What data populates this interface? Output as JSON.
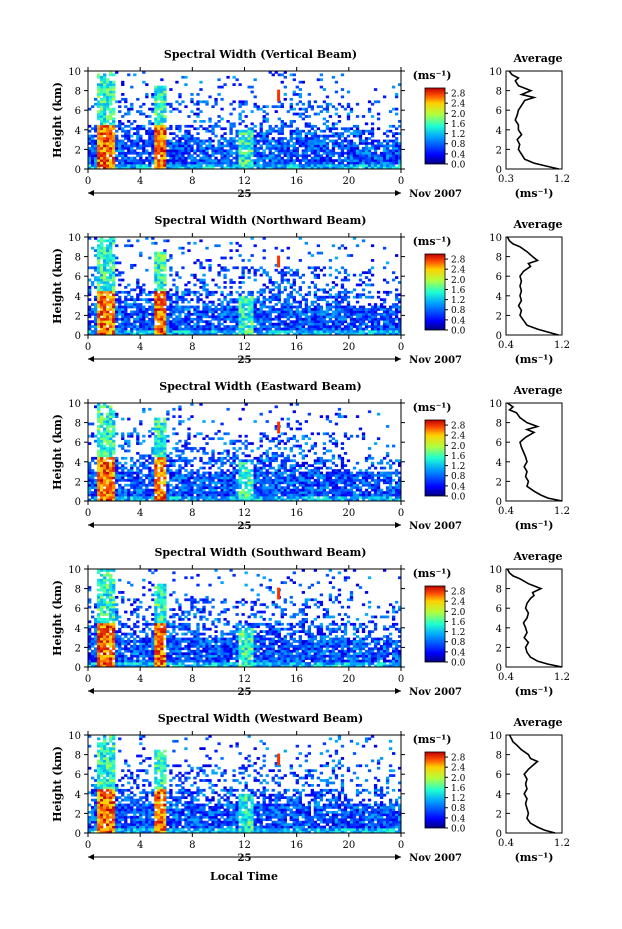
{
  "figure": {
    "date_label": "Nov 2007",
    "day_label": "25",
    "xlabel": "Local Time",
    "ylabel": "Height (km)",
    "unit_label": "(ms⁻¹)",
    "profile_title": "Average",
    "profile_xlabel": "(ms⁻¹)"
  },
  "chart_data": [
    {
      "type": "heatmap",
      "title": "Spectral Width (Vertical Beam)",
      "x_ticks": [
        "0",
        "4",
        "8",
        "12",
        "16",
        "20",
        "0"
      ],
      "y_ticks": [
        "0",
        "2",
        "4",
        "6",
        "8",
        "10"
      ],
      "xlim": [
        0,
        24
      ],
      "ylim": [
        0,
        10
      ],
      "colorbar_ticks": [
        "0.0",
        "0.4",
        "0.8",
        "1.2",
        "1.6",
        "2.0",
        "2.4",
        "2.8"
      ],
      "colorbar_range": [
        0,
        3.0
      ],
      "profile": {
        "x_ticks": [
          "0.3",
          "1.2"
        ],
        "xlim": [
          0.3,
          1.2
        ],
        "y_ticks": [
          "0",
          "2",
          "4",
          "6",
          "8",
          "10"
        ],
        "heights": [
          0,
          0.3,
          0.6,
          1,
          1.5,
          2,
          2.5,
          3,
          3.5,
          4,
          4.5,
          5,
          5.5,
          6,
          6.5,
          7,
          7.3,
          7.6,
          8,
          8.5,
          9,
          9.3,
          9.6,
          10
        ],
        "values": [
          1.15,
          0.95,
          0.75,
          0.6,
          0.55,
          0.5,
          0.52,
          0.48,
          0.55,
          0.5,
          0.5,
          0.45,
          0.48,
          0.5,
          0.55,
          0.6,
          0.75,
          0.55,
          0.7,
          0.5,
          0.45,
          0.5,
          0.4,
          0.35
        ]
      }
    },
    {
      "type": "heatmap",
      "title": "Spectral Width (Northward Beam)",
      "x_ticks": [
        "0",
        "4",
        "8",
        "12",
        "16",
        "20",
        "0"
      ],
      "y_ticks": [
        "0",
        "2",
        "4",
        "6",
        "8",
        "10"
      ],
      "xlim": [
        0,
        24
      ],
      "ylim": [
        0,
        10
      ],
      "colorbar_ticks": [
        "0.0",
        "0.4",
        "0.8",
        "1.2",
        "1.6",
        "2.0",
        "2.4",
        "2.8"
      ],
      "colorbar_range": [
        0,
        3.0
      ],
      "profile": {
        "x_ticks": [
          "0.4",
          "1.2"
        ],
        "xlim": [
          0.4,
          1.2
        ],
        "y_ticks": [
          "0",
          "2",
          "4",
          "6",
          "8",
          "10"
        ],
        "heights": [
          0,
          0.3,
          0.6,
          1,
          1.5,
          2,
          2.5,
          3,
          3.5,
          4,
          4.5,
          5,
          5.5,
          6,
          6.5,
          7,
          7.3,
          7.6,
          8,
          8.5,
          9,
          9.3,
          9.6,
          10
        ],
        "values": [
          1.15,
          1.0,
          0.85,
          0.7,
          0.65,
          0.6,
          0.62,
          0.58,
          0.62,
          0.6,
          0.62,
          0.6,
          0.62,
          0.6,
          0.65,
          0.75,
          0.72,
          0.85,
          0.78,
          0.7,
          0.6,
          0.5,
          0.45,
          0.42
        ]
      }
    },
    {
      "type": "heatmap",
      "title": "Spectral Width (Eastward Beam)",
      "x_ticks": [
        "0",
        "4",
        "8",
        "12",
        "16",
        "20",
        "0"
      ],
      "y_ticks": [
        "0",
        "2",
        "4",
        "6",
        "8",
        "10"
      ],
      "xlim": [
        0,
        24
      ],
      "ylim": [
        0,
        10
      ],
      "colorbar_ticks": [
        "0.0",
        "0.4",
        "0.8",
        "1.2",
        "1.6",
        "2.0",
        "2.4",
        "2.8"
      ],
      "colorbar_range": [
        0,
        3.0
      ],
      "profile": {
        "x_ticks": [
          "0.4",
          "1.2"
        ],
        "xlim": [
          0.4,
          1.2
        ],
        "y_ticks": [
          "0",
          "2",
          "4",
          "6",
          "8",
          "10"
        ],
        "heights": [
          0,
          0.3,
          0.6,
          1,
          1.5,
          2,
          2.5,
          3,
          3.5,
          4,
          4.5,
          5,
          5.5,
          6,
          6.5,
          7,
          7.3,
          7.6,
          8,
          8.5,
          9,
          9.3,
          9.6,
          10
        ],
        "values": [
          1.2,
          1.0,
          0.9,
          0.8,
          0.7,
          0.72,
          0.68,
          0.7,
          0.66,
          0.7,
          0.68,
          0.65,
          0.62,
          0.6,
          0.68,
          0.8,
          0.7,
          0.85,
          0.7,
          0.6,
          0.55,
          0.45,
          0.5,
          0.42
        ]
      }
    },
    {
      "type": "heatmap",
      "title": "Spectral Width (Southward Beam)",
      "x_ticks": [
        "0",
        "4",
        "8",
        "12",
        "16",
        "20",
        "0"
      ],
      "y_ticks": [
        "0",
        "2",
        "4",
        "6",
        "8",
        "10"
      ],
      "xlim": [
        0,
        24
      ],
      "ylim": [
        0,
        10
      ],
      "colorbar_ticks": [
        "0.0",
        "0.4",
        "0.8",
        "1.2",
        "1.6",
        "2.0",
        "2.4",
        "2.8"
      ],
      "colorbar_range": [
        0,
        3.0
      ],
      "profile": {
        "x_ticks": [
          "0.4",
          "1.2"
        ],
        "xlim": [
          0.4,
          1.2
        ],
        "y_ticks": [
          "0",
          "2",
          "4",
          "6",
          "8",
          "10"
        ],
        "heights": [
          0,
          0.3,
          0.6,
          1,
          1.5,
          2,
          2.5,
          3,
          3.5,
          4,
          4.5,
          5,
          5.5,
          6,
          6.5,
          7,
          7.3,
          7.6,
          8,
          8.5,
          9,
          9.3,
          9.6,
          10
        ],
        "values": [
          1.2,
          1.0,
          0.85,
          0.75,
          0.7,
          0.68,
          0.72,
          0.66,
          0.7,
          0.68,
          0.65,
          0.7,
          0.72,
          0.68,
          0.7,
          0.75,
          0.8,
          0.78,
          0.9,
          0.72,
          0.6,
          0.5,
          0.45,
          0.42
        ]
      }
    },
    {
      "type": "heatmap",
      "title": "Spectral Width (Westward Beam)",
      "x_ticks": [
        "0",
        "4",
        "8",
        "12",
        "16",
        "20",
        "0"
      ],
      "y_ticks": [
        "0",
        "2",
        "4",
        "6",
        "8",
        "10"
      ],
      "xlim": [
        0,
        24
      ],
      "ylim": [
        0,
        10
      ],
      "colorbar_ticks": [
        "0.0",
        "0.4",
        "0.8",
        "1.2",
        "1.6",
        "2.0",
        "2.4",
        "2.8"
      ],
      "colorbar_range": [
        0,
        3.0
      ],
      "profile": {
        "x_ticks": [
          "0.4",
          "1.2"
        ],
        "xlim": [
          0.4,
          1.2
        ],
        "y_ticks": [
          "0",
          "2",
          "4",
          "6",
          "8",
          "10"
        ],
        "heights": [
          0,
          0.3,
          0.6,
          1,
          1.5,
          2,
          2.5,
          3,
          3.5,
          4,
          4.5,
          5,
          5.5,
          6,
          6.5,
          7,
          7.3,
          7.6,
          8,
          8.5,
          9,
          9.3,
          9.6,
          10
        ],
        "values": [
          1.1,
          0.95,
          0.85,
          0.75,
          0.7,
          0.72,
          0.7,
          0.68,
          0.7,
          0.66,
          0.7,
          0.68,
          0.7,
          0.66,
          0.72,
          0.8,
          0.85,
          0.75,
          0.72,
          0.62,
          0.55,
          0.5,
          0.48,
          0.45
        ]
      }
    }
  ]
}
